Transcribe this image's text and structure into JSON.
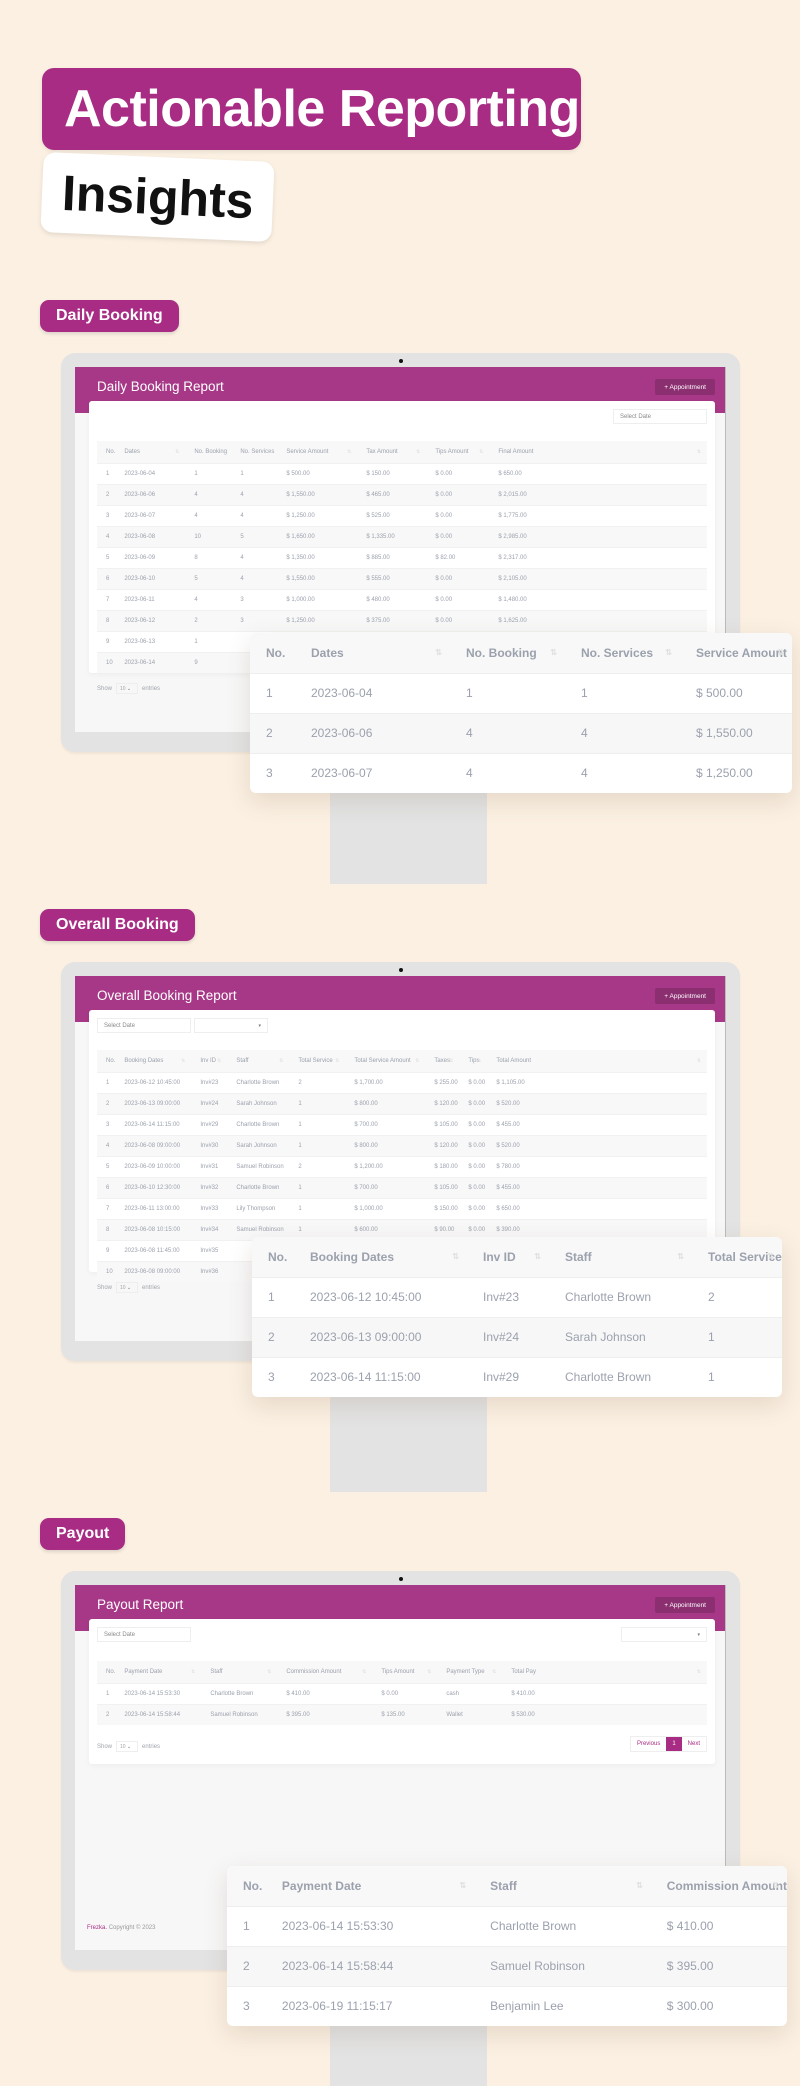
{
  "hero": {
    "title": "Actionable Reporting",
    "subtitle": "Insights"
  },
  "colors": {
    "brand": "#a82c84",
    "header": "#a73887",
    "background": "#fbf0e2",
    "frame": "#e3e3e3"
  },
  "sections": {
    "daily": {
      "pill": "Daily Booking",
      "report_title": "Daily Booking Report",
      "appointment_button": "+ Appointment",
      "date_placeholder": "Select Date",
      "columns": [
        "No.",
        "Dates",
        "No. Booking",
        "No. Services",
        "Service Amount",
        "Tax Amount",
        "Tips Amount",
        "Final Amount"
      ],
      "rows": [
        [
          "1",
          "2023-06-04",
          "1",
          "1",
          "$ 500.00",
          "$ 150.00",
          "$ 0.00",
          "$ 650.00"
        ],
        [
          "2",
          "2023-06-06",
          "4",
          "4",
          "$ 1,550.00",
          "$ 465.00",
          "$ 0.00",
          "$ 2,015.00"
        ],
        [
          "3",
          "2023-06-07",
          "4",
          "4",
          "$ 1,250.00",
          "$ 525.00",
          "$ 0.00",
          "$ 1,775.00"
        ],
        [
          "4",
          "2023-06-08",
          "10",
          "5",
          "$ 1,650.00",
          "$ 1,335.00",
          "$ 0.00",
          "$ 2,985.00"
        ],
        [
          "5",
          "2023-06-09",
          "8",
          "4",
          "$ 1,350.00",
          "$ 885.00",
          "$ 82.00",
          "$ 2,317.00"
        ],
        [
          "6",
          "2023-06-10",
          "5",
          "4",
          "$ 1,550.00",
          "$ 555.00",
          "$ 0.00",
          "$ 2,105.00"
        ],
        [
          "7",
          "2023-06-11",
          "4",
          "3",
          "$ 1,000.00",
          "$ 480.00",
          "$ 0.00",
          "$ 1,480.00"
        ],
        [
          "8",
          "2023-06-12",
          "2",
          "3",
          "$ 1,250.00",
          "$ 375.00",
          "$ 0.00",
          "$ 1,625.00"
        ],
        [
          "9",
          "2023-06-13",
          "1",
          "",
          "",
          "",
          "",
          ""
        ],
        [
          "10",
          "2023-06-14",
          "9",
          "",
          "",
          "",
          "",
          ""
        ]
      ],
      "show_label": "Show",
      "show_value": "10",
      "entries_label": "entries",
      "zoom": {
        "columns": [
          "No.",
          "Dates",
          "No. Booking",
          "No. Services",
          "Service Amount"
        ],
        "rows": [
          [
            "1",
            "2023-06-04",
            "1",
            "1",
            "$ 500.00"
          ],
          [
            "2",
            "2023-06-06",
            "4",
            "4",
            "$ 1,550.00"
          ],
          [
            "3",
            "2023-06-07",
            "4",
            "4",
            "$ 1,250.00"
          ]
        ]
      }
    },
    "overall": {
      "pill": "Overall Booking",
      "report_title": "Overall Booking Report",
      "appointment_button": "+ Appointment",
      "date_placeholder": "Select Date",
      "columns": [
        "No.",
        "Booking Dates",
        "Inv ID",
        "Staff",
        "Total Service",
        "Total Service Amount",
        "Taxes",
        "Tips",
        "Total Amount"
      ],
      "rows": [
        [
          "1",
          "2023-06-12 10:45:00",
          "Inv#23",
          "Charlotte Brown",
          "2",
          "$ 1,700.00",
          "$ 255.00",
          "$ 0.00",
          "$ 1,105.00"
        ],
        [
          "2",
          "2023-06-13 09:00:00",
          "Inv#24",
          "Sarah Johnson",
          "1",
          "$ 800.00",
          "$ 120.00",
          "$ 0.00",
          "$ 520.00"
        ],
        [
          "3",
          "2023-06-14 11:15:00",
          "Inv#29",
          "Charlotte Brown",
          "1",
          "$ 700.00",
          "$ 105.00",
          "$ 0.00",
          "$ 455.00"
        ],
        [
          "4",
          "2023-06-08 09:00:00",
          "Inv#30",
          "Sarah Johnson",
          "1",
          "$ 800.00",
          "$ 120.00",
          "$ 0.00",
          "$ 520.00"
        ],
        [
          "5",
          "2023-06-09 10:00:00",
          "Inv#31",
          "Samuel Robinson",
          "2",
          "$ 1,200.00",
          "$ 180.00",
          "$ 0.00",
          "$ 780.00"
        ],
        [
          "6",
          "2023-06-10 12:30:00",
          "Inv#32",
          "Charlotte Brown",
          "1",
          "$ 700.00",
          "$ 105.00",
          "$ 0.00",
          "$ 455.00"
        ],
        [
          "7",
          "2023-06-11 13:00:00",
          "Inv#33",
          "Lily Thompson",
          "1",
          "$ 1,000.00",
          "$ 150.00",
          "$ 0.00",
          "$ 650.00"
        ],
        [
          "8",
          "2023-06-08 10:15:00",
          "Inv#34",
          "Samuel Robinson",
          "1",
          "$ 600.00",
          "$ 90.00",
          "$ 0.00",
          "$ 390.00"
        ],
        [
          "9",
          "2023-06-08 11:45:00",
          "Inv#35",
          "",
          "",
          "",
          "",
          "",
          ""
        ],
        [
          "10",
          "2023-06-08 09:00:00",
          "Inv#36",
          "",
          "",
          "",
          "",
          "",
          ""
        ]
      ],
      "show_label": "Show",
      "show_value": "10",
      "entries_label": "entries",
      "zoom": {
        "columns": [
          "No.",
          "Booking Dates",
          "Inv ID",
          "Staff",
          "Total Service"
        ],
        "rows": [
          [
            "1",
            "2023-06-12 10:45:00",
            "Inv#23",
            "Charlotte Brown",
            "2"
          ],
          [
            "2",
            "2023-06-13 09:00:00",
            "Inv#24",
            "Sarah Johnson",
            "1"
          ],
          [
            "3",
            "2023-06-14 11:15:00",
            "Inv#29",
            "Charlotte Brown",
            "1"
          ]
        ]
      }
    },
    "payout": {
      "pill": "Payout",
      "report_title": "Payout Report",
      "appointment_button": "+ Appointment",
      "date_placeholder": "Select Date",
      "columns": [
        "No.",
        "Payment Date",
        "Staff",
        "Commission Amount",
        "Tips Amount",
        "Payment Type",
        "Total Pay"
      ],
      "rows": [
        [
          "1",
          "2023-06-14 15:53:30",
          "Charlotte Brown",
          "$ 410.00",
          "$ 0.00",
          "cash",
          "$ 410.00"
        ],
        [
          "2",
          "2023-06-14 15:58:44",
          "Samuel Robinson",
          "$ 395.00",
          "$ 135.00",
          "Wallet",
          "$ 530.00"
        ]
      ],
      "show_label": "Show",
      "show_value": "10",
      "entries_label": "entries",
      "pagination": {
        "previous": "Previous",
        "current": "1",
        "next": "Next"
      },
      "footer": {
        "brand": "Frezka.",
        "copyright": "Copyright © 2023"
      },
      "zoom": {
        "columns": [
          "No.",
          "Payment Date",
          "Staff",
          "Commission Amount"
        ],
        "rows": [
          [
            "1",
            "2023-06-14 15:53:30",
            "Charlotte Brown",
            "$ 410.00"
          ],
          [
            "2",
            "2023-06-14 15:58:44",
            "Samuel Robinson",
            "$ 395.00"
          ],
          [
            "3",
            "2023-06-19 11:15:17",
            "Benjamin Lee",
            "$ 300.00"
          ]
        ]
      }
    }
  }
}
